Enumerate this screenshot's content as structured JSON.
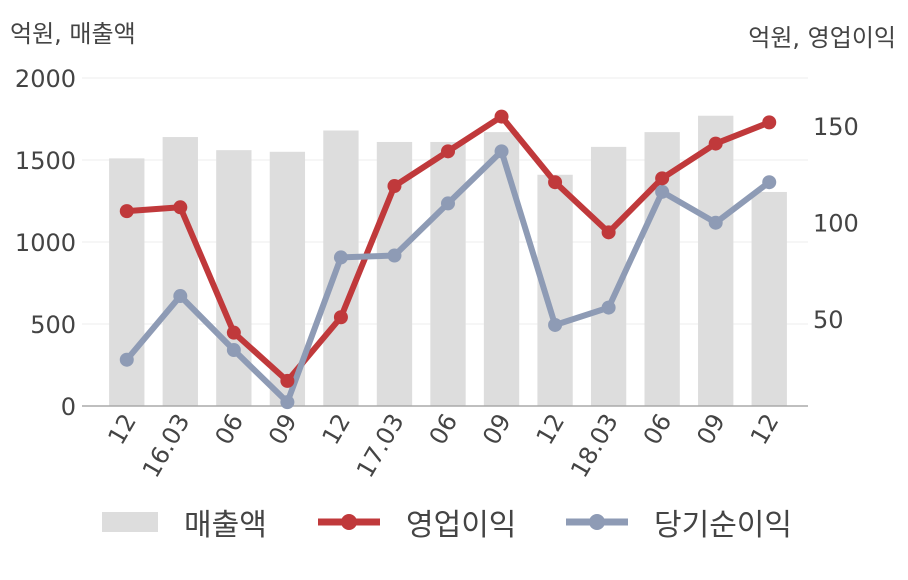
{
  "units": {
    "left": "억원, 매출액",
    "right": "억원, 영업이익"
  },
  "colors": {
    "bar": "#dddddd",
    "operating": "#c0393b",
    "net": "#8e9bb5",
    "axis": "#aaaaaa",
    "grid": "#eeeeee",
    "text": "#444444"
  },
  "chart_data": {
    "type": "bar+line",
    "categories": [
      "12",
      "16.03",
      "06",
      "09",
      "12",
      "17.03",
      "06",
      "09",
      "12",
      "18.03",
      "06",
      "09",
      "12"
    ],
    "y_left": {
      "label": "억원, 매출액",
      "ylim": [
        0,
        2000
      ],
      "ticks": [
        0,
        500,
        1000,
        1500,
        2000
      ]
    },
    "y_right": {
      "label": "억원, 영업이익",
      "ylim": [
        5,
        175
      ],
      "ticks": [
        50,
        100,
        150
      ]
    },
    "series": [
      {
        "name": "매출액",
        "kind": "bar",
        "axis": "left",
        "values": [
          1510,
          1640,
          1560,
          1550,
          1680,
          1610,
          1610,
          1670,
          1410,
          1580,
          1670,
          1770,
          1305
        ]
      },
      {
        "name": "영업이익",
        "kind": "line",
        "axis": "right",
        "values": [
          106,
          108,
          43,
          18,
          51,
          119,
          137,
          155,
          121,
          95,
          123,
          141,
          152
        ]
      },
      {
        "name": "당기순이익",
        "kind": "line",
        "axis": "right",
        "values": [
          29,
          62,
          34,
          7,
          82,
          83,
          110,
          137,
          47,
          56,
          116,
          100,
          121
        ]
      }
    ]
  },
  "legend": [
    {
      "label": "매출액"
    },
    {
      "label": "영업이익"
    },
    {
      "label": "당기순이익"
    }
  ]
}
